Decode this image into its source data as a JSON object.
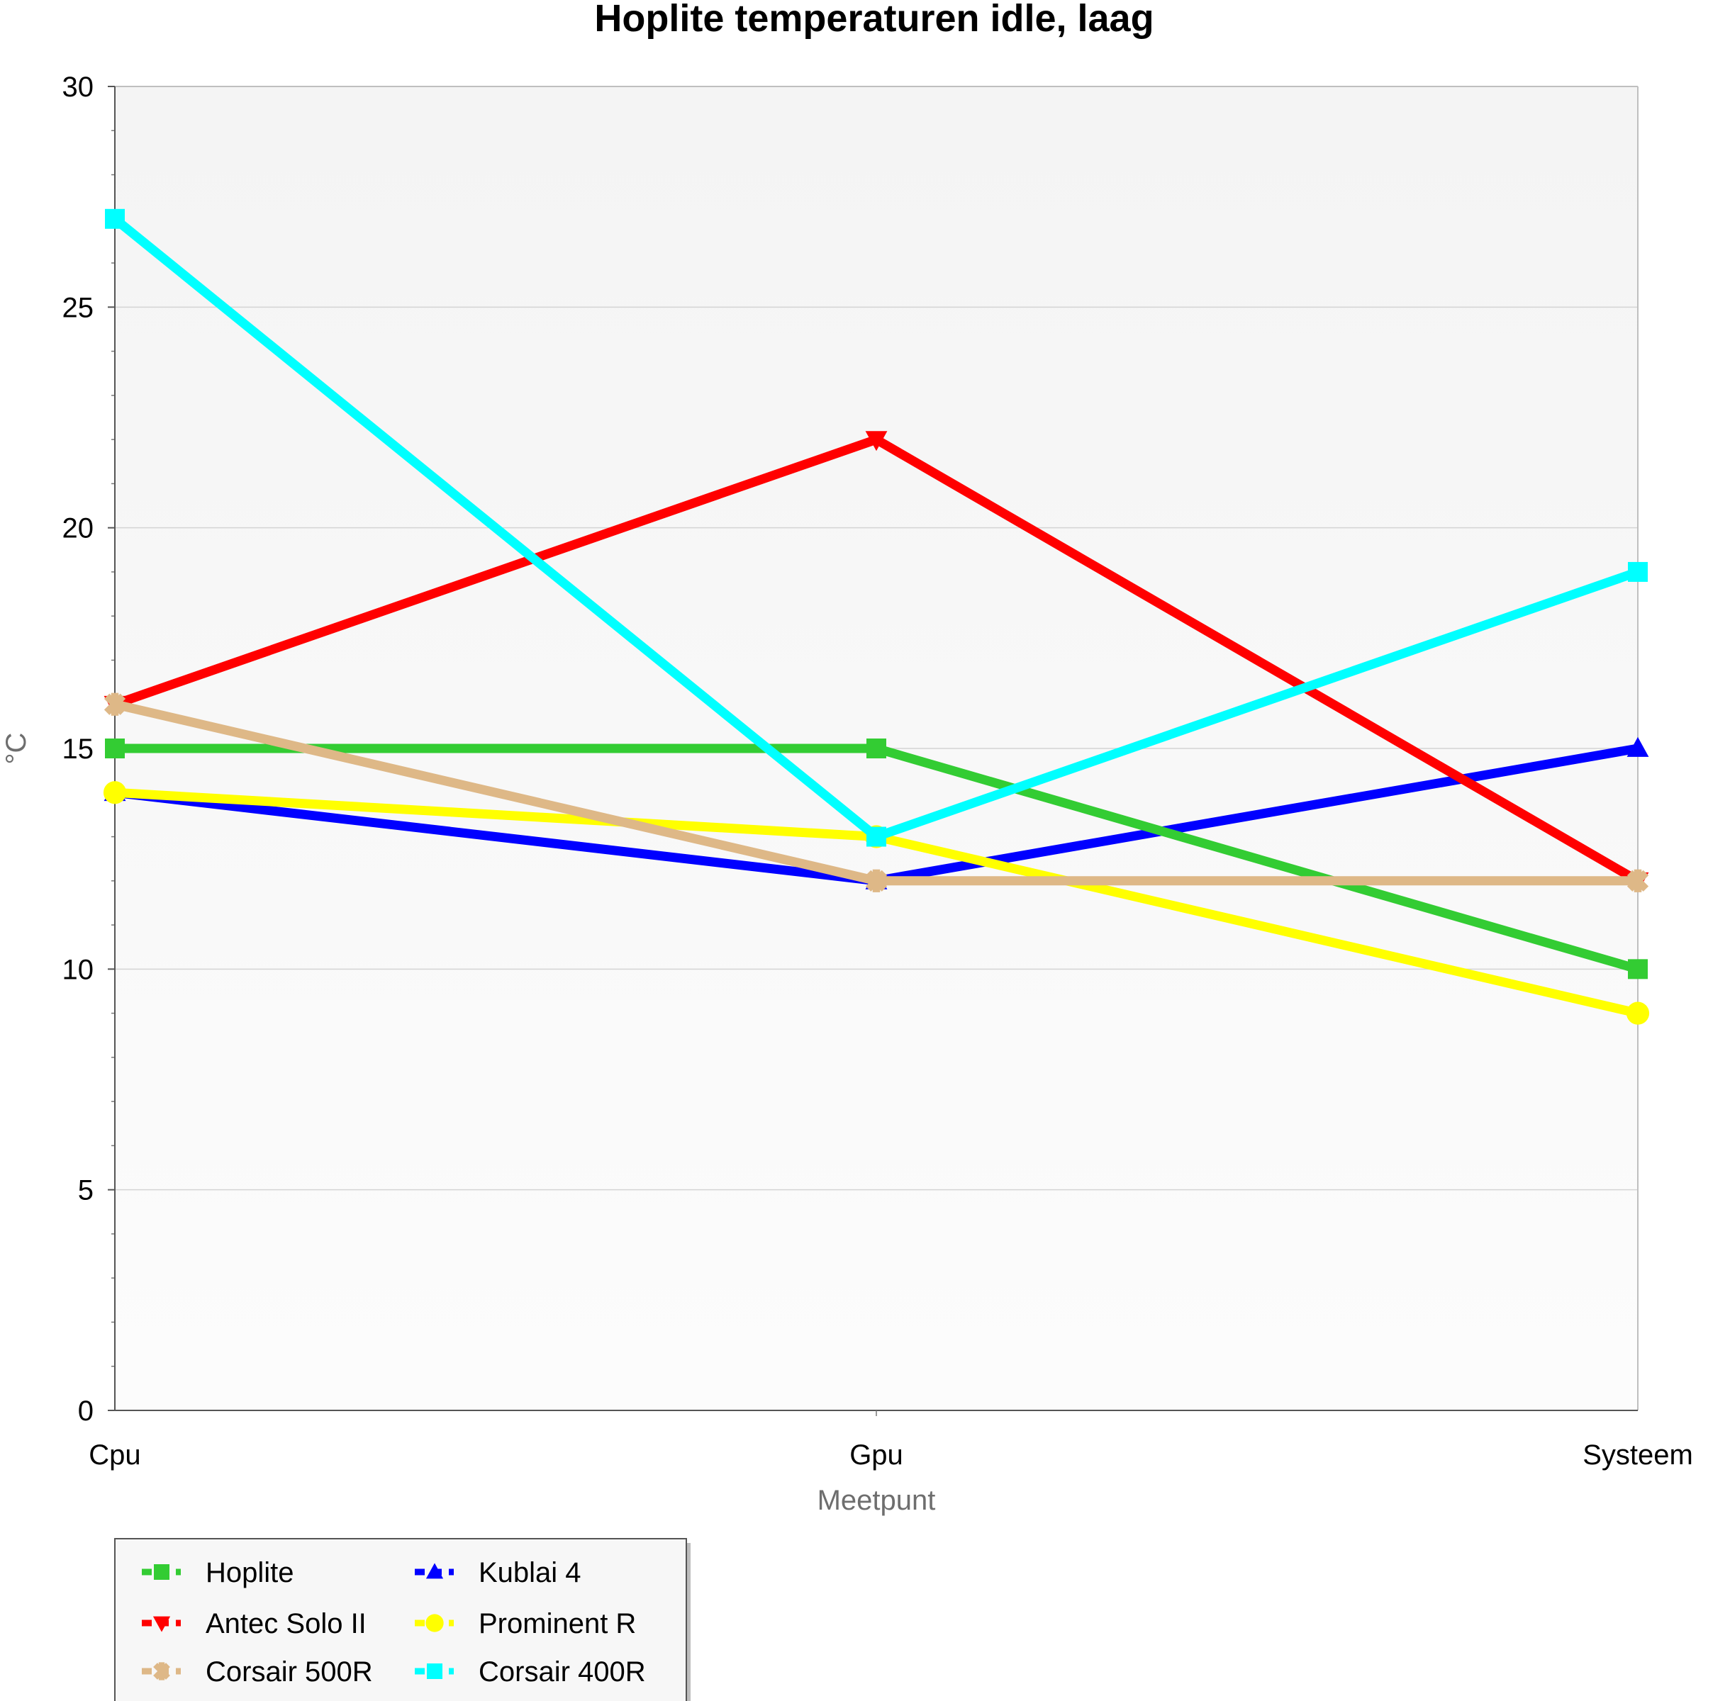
{
  "chart_data": {
    "type": "line",
    "title": "Hoplite temperaturen idle, laag",
    "xlabel": "Meetpunt",
    "ylabel": "°C",
    "categories": [
      "Cpu",
      "Gpu",
      "Systeem"
    ],
    "ylim": [
      0,
      30
    ],
    "yticks": [
      0,
      5,
      10,
      15,
      20,
      25,
      30
    ],
    "grid": true,
    "legend_position": "bottom-left",
    "series": [
      {
        "name": "Hoplite",
        "values": [
          15,
          15,
          10
        ],
        "color": "#33cc33",
        "marker": "square"
      },
      {
        "name": "Kublai 4",
        "values": [
          14,
          12,
          15
        ],
        "color": "#0000ff",
        "marker": "triangle-up"
      },
      {
        "name": "Antec Solo II",
        "values": [
          16,
          22,
          12
        ],
        "color": "#ff0000",
        "marker": "triangle-down"
      },
      {
        "name": "Prominent R",
        "values": [
          14,
          13,
          9
        ],
        "color": "#ffff00",
        "marker": "circle"
      },
      {
        "name": "Corsair 500R",
        "values": [
          16,
          12,
          12
        ],
        "color": "#deb887",
        "marker": "star"
      },
      {
        "name": "Corsair 400R",
        "values": [
          27,
          13,
          19
        ],
        "color": "#00ffff",
        "marker": "square"
      }
    ]
  }
}
